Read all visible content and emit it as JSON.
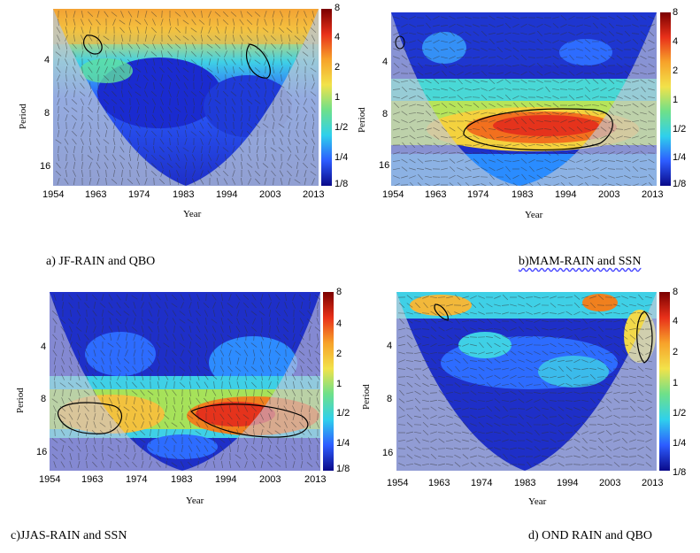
{
  "chart_data": [
    {
      "type": "heatmap",
      "title": "",
      "caption": "a) JF-RAIN and QBO",
      "xlabel": "Year",
      "ylabel": "Period",
      "x_ticks": [
        "1954",
        "1963",
        "1974",
        "1983",
        "1994",
        "2003",
        "2013"
      ],
      "y_ticks": [
        "4",
        "8",
        "16"
      ],
      "colorbar": [
        "8",
        "4",
        "2",
        "1",
        "1/2",
        "1/4",
        "1/8"
      ],
      "high_power_regions": [
        {
          "year_from": 1954,
          "year_to": 2013,
          "period_from": 2,
          "period_to": 3,
          "power": "2-4"
        },
        {
          "year_from": 1958,
          "year_to": 1962,
          "period_from": 2.5,
          "period_to": 3.5,
          "power": "4"
        },
        {
          "year_from": 1999,
          "year_to": 2004,
          "period_from": 3,
          "period_to": 5,
          "power": "4"
        }
      ]
    },
    {
      "type": "heatmap",
      "title": "",
      "caption": "b)MAM-RAIN and SSN",
      "xlabel": "Year",
      "ylabel": "Period",
      "x_ticks": [
        "1954",
        "1963",
        "1974",
        "1983",
        "1994",
        "2003",
        "2013"
      ],
      "y_ticks": [
        "4",
        "8",
        "16"
      ],
      "colorbar": [
        "8",
        "4",
        "2",
        "1",
        "1/2",
        "1/4",
        "1/8"
      ],
      "high_power_regions": [
        {
          "year_from": 1968,
          "year_to": 2003,
          "period_from": 8,
          "period_to": 13,
          "power": "4-8"
        }
      ]
    },
    {
      "type": "heatmap",
      "title": "",
      "caption": "c)JJAS-RAIN and SSN",
      "xlabel": "Year",
      "ylabel": "Period",
      "x_ticks": [
        "1954",
        "1963",
        "1974",
        "1983",
        "1994",
        "2003",
        "2013"
      ],
      "y_ticks": [
        "4",
        "8",
        "16"
      ],
      "colorbar": [
        "8",
        "4",
        "2",
        "1",
        "1/2",
        "1/4",
        "1/8"
      ],
      "high_power_regions": [
        {
          "year_from": 1955,
          "year_to": 1968,
          "period_from": 9,
          "period_to": 14,
          "power": "2"
        },
        {
          "year_from": 1986,
          "year_to": 2011,
          "period_from": 9,
          "period_to": 14,
          "power": "4"
        }
      ]
    },
    {
      "type": "heatmap",
      "title": "",
      "caption": "d) OND RAIN and QBO",
      "xlabel": "Year",
      "ylabel": "Period",
      "x_ticks": [
        "1954",
        "1963",
        "1974",
        "1983",
        "1994",
        "2003",
        "2013"
      ],
      "y_ticks": [
        "4",
        "8",
        "16"
      ],
      "colorbar": [
        "8",
        "4",
        "2",
        "1",
        "1/2",
        "1/4",
        "1/8"
      ],
      "high_power_regions": [
        {
          "year_from": 1961,
          "year_to": 1965,
          "period_from": 2,
          "period_to": 3,
          "power": "4"
        },
        {
          "year_from": 2009,
          "year_to": 2013,
          "period_from": 3,
          "period_to": 5,
          "power": "2"
        }
      ]
    }
  ],
  "colors": {
    "deep_blue": "#1e2fc8",
    "blue": "#2d6cff",
    "cyan": "#33d6e8",
    "green": "#7cd98a",
    "yellow": "#f2e24a",
    "orange": "#f59a2a",
    "red": "#e5331c",
    "coi_shade": "#c8c8d8"
  }
}
